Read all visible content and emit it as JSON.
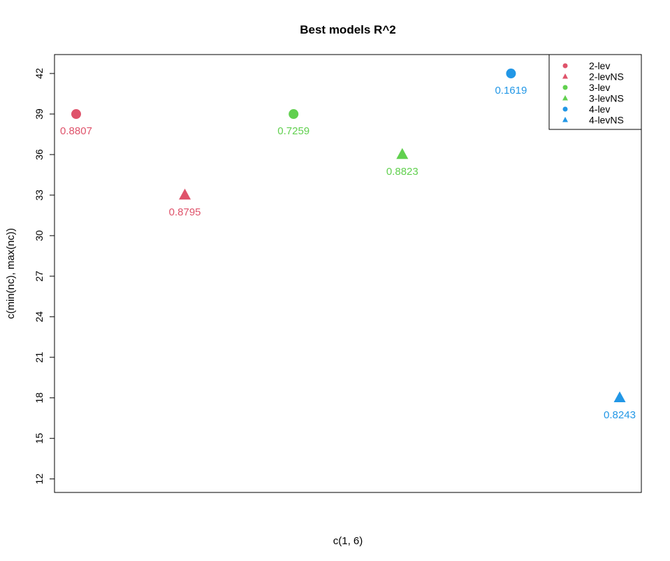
{
  "chart_data": {
    "type": "scatter",
    "title": "Best models R^2",
    "xlabel": "c(1, 6)",
    "ylabel": "c(min(nc), max(nc))",
    "xlim": [
      1,
      6
    ],
    "ylim": [
      11.0,
      43.4
    ],
    "y_ticks": [
      12,
      15,
      18,
      21,
      24,
      27,
      30,
      33,
      36,
      39,
      42
    ],
    "x_ticks": [],
    "grid": false,
    "legend_position": "top-right",
    "series": [
      {
        "name": "2-lev",
        "color": "#DF536B",
        "shape": "circle",
        "x": 1.0,
        "y": 39,
        "label": "0.8807"
      },
      {
        "name": "2-levNS",
        "color": "#DF536B",
        "shape": "triangle",
        "x": 2.0,
        "y": 33,
        "label": "0.8795"
      },
      {
        "name": "3-lev",
        "color": "#61D04F",
        "shape": "circle",
        "x": 3.0,
        "y": 39,
        "label": "0.7259"
      },
      {
        "name": "3-levNS",
        "color": "#61D04F",
        "shape": "triangle",
        "x": 4.0,
        "y": 36,
        "label": "0.8823"
      },
      {
        "name": "4-lev",
        "color": "#2297E6",
        "shape": "circle",
        "x": 5.0,
        "y": 42,
        "label": "0.1619"
      },
      {
        "name": "4-levNS",
        "color": "#2297E6",
        "shape": "triangle",
        "x": 6.0,
        "y": 18,
        "label": "0.8243"
      }
    ]
  }
}
